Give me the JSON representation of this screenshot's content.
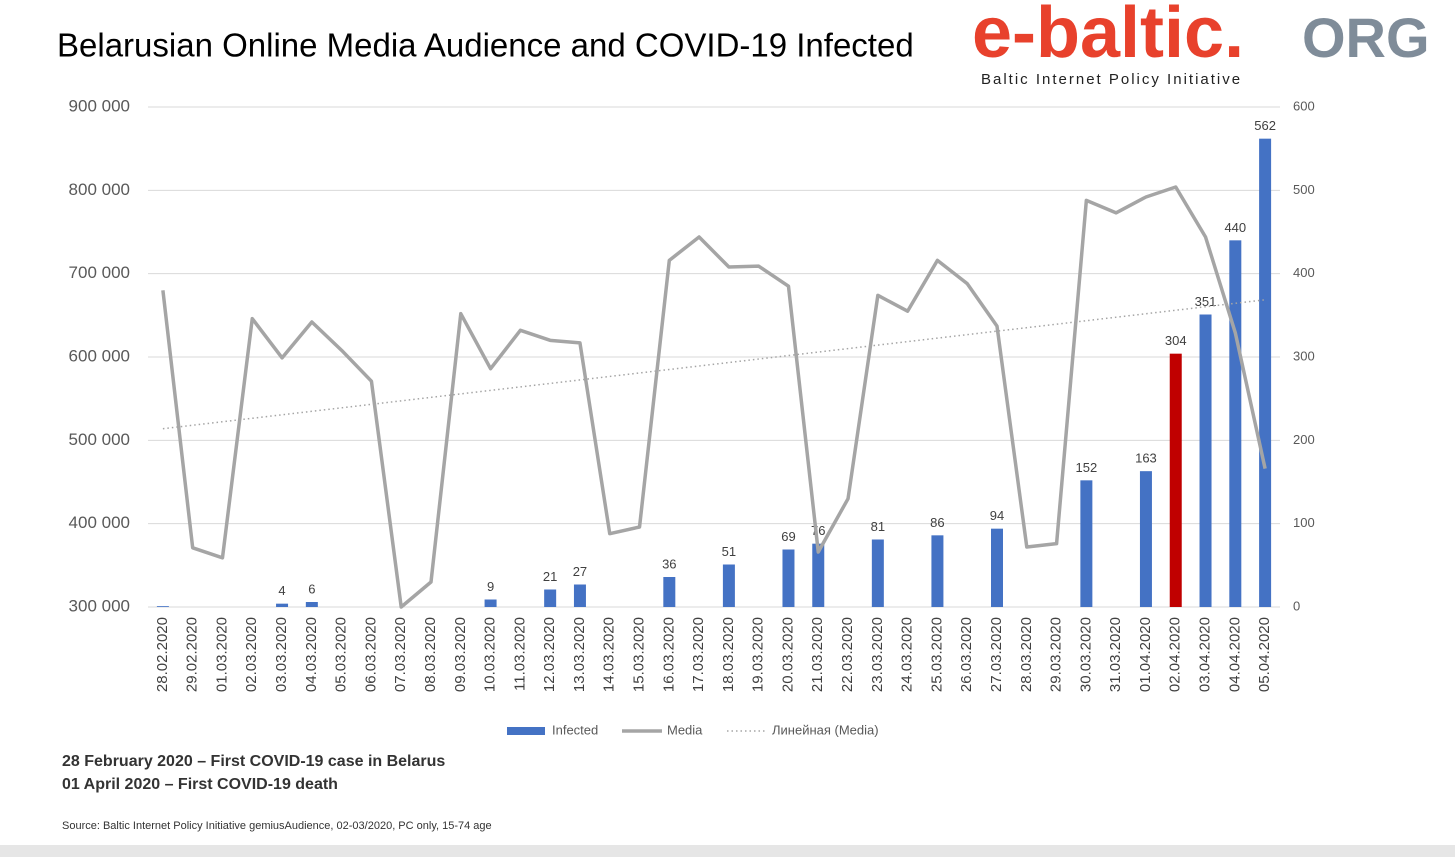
{
  "chart_data": {
    "type": "bar",
    "title": "Belarusian Online Media Audience and COVID-19 Infected",
    "categories": [
      "28.02.2020",
      "29.02.2020",
      "01.03.2020",
      "02.03.2020",
      "03.03.2020",
      "04.03.2020",
      "05.03.2020",
      "06.03.2020",
      "07.03.2020",
      "08.03.2020",
      "09.03.2020",
      "10.03.2020",
      "11.03.2020",
      "12.03.2020",
      "13.03.2020",
      "14.03.2020",
      "15.03.2020",
      "16.03.2020",
      "17.03.2020",
      "18.03.2020",
      "19.03.2020",
      "20.03.2020",
      "21.03.2020",
      "22.03.2020",
      "23.03.2020",
      "24.03.2020",
      "25.03.2020",
      "26.03.2020",
      "27.03.2020",
      "28.03.2020",
      "29.03.2020",
      "30.03.2020",
      "31.03.2020",
      "01.04.2020",
      "02.04.2020",
      "03.04.2020",
      "04.04.2020",
      "05.04.2020"
    ],
    "series": [
      {
        "name": "Infected",
        "type": "bar",
        "axis": "y2",
        "color": "#4472c4",
        "colors": [
          "#4472c4",
          "#4472c4",
          "#4472c4",
          "#4472c4",
          "#4472c4",
          "#4472c4",
          "#4472c4",
          "#4472c4",
          "#4472c4",
          "#4472c4",
          "#4472c4",
          "#4472c4",
          "#4472c4",
          "#4472c4",
          "#4472c4",
          "#4472c4",
          "#4472c4",
          "#4472c4",
          "#4472c4",
          "#4472c4",
          "#4472c4",
          "#4472c4",
          "#4472c4",
          "#4472c4",
          "#4472c4",
          "#4472c4",
          "#4472c4",
          "#4472c4",
          "#4472c4",
          "#4472c4",
          "#4472c4",
          "#4472c4",
          "#4472c4",
          "#4472c4",
          "#c00000",
          "#4472c4",
          "#4472c4",
          "#4472c4"
        ],
        "values": [
          1,
          null,
          null,
          null,
          4,
          6,
          null,
          null,
          null,
          null,
          null,
          9,
          null,
          21,
          27,
          null,
          null,
          36,
          null,
          51,
          null,
          69,
          76,
          null,
          81,
          null,
          86,
          null,
          94,
          null,
          null,
          152,
          null,
          163,
          304,
          351,
          440,
          562
        ],
        "value_labels": [
          null,
          null,
          null,
          null,
          "4",
          "6",
          null,
          null,
          null,
          null,
          null,
          "9",
          null,
          "21",
          "27",
          null,
          null,
          "36",
          null,
          "51",
          null,
          "69",
          "76",
          null,
          "81",
          null,
          "86",
          null,
          "94",
          null,
          null,
          "152",
          null,
          "163",
          "304",
          "351",
          "440",
          "562"
        ]
      },
      {
        "name": "Media",
        "type": "line",
        "color": "#a5a5a5",
        "values": [
          680000,
          371000,
          359000,
          646000,
          599000,
          642000,
          608000,
          571000,
          300000,
          330000,
          652000,
          586000,
          632000,
          620000,
          617000,
          388000,
          396000,
          716000,
          744000,
          708000,
          709000,
          685000,
          366000,
          430000,
          674000,
          655000,
          716000,
          688000,
          637000,
          372000,
          376000,
          788000,
          773000,
          792000,
          804000,
          744000,
          629000,
          466000
        ]
      }
    ],
    "trendline": {
      "name": "Линейная (Media)",
      "series": 1,
      "color": "#a5a5a5"
    },
    "ylim": [
      300000,
      900000
    ],
    "yticks": [
      {
        "value": 300000,
        "label": "300 000"
      },
      {
        "value": 400000,
        "label": "400 000"
      },
      {
        "value": 500000,
        "label": "500 000"
      },
      {
        "value": 600000,
        "label": "600 000"
      },
      {
        "value": 700000,
        "label": "700 000"
      },
      {
        "value": 800000,
        "label": "800 000"
      },
      {
        "value": 900000,
        "label": "900 000"
      }
    ],
    "y2lim": [
      0,
      600
    ],
    "y2ticks": [
      0,
      100,
      200,
      300,
      400,
      500,
      600
    ],
    "grid": true,
    "legend": "bottom"
  },
  "logo": {
    "brand": "e-baltic.",
    "suffix": "ORG",
    "tagline": "Baltic Internet Policy Initiative"
  },
  "notes": [
    "28 February 2020 – First COVID-19 case in Belarus",
    "01 April 2020 – First COVID-19 death"
  ],
  "source": "Source: Baltic Internet Policy Initiative  gemiusAudience, 02-03/2020, PC only, 15-74 age"
}
